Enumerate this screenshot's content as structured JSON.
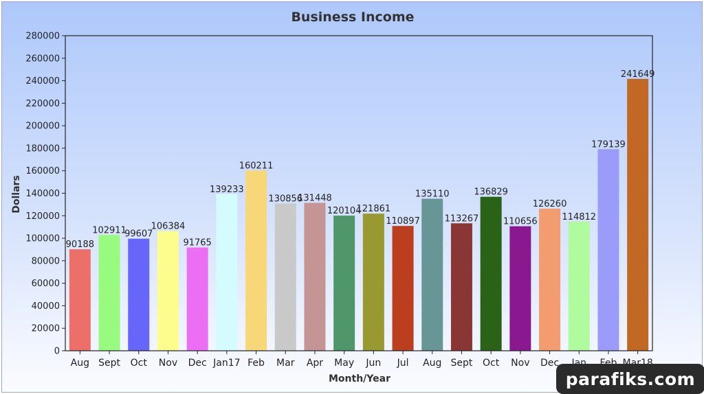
{
  "chart_data": {
    "type": "bar",
    "title": "Business Income",
    "xlabel": "Month/Year",
    "ylabel": "Dollars",
    "ylim": [
      0,
      280000
    ],
    "yticks": [
      0,
      20000,
      40000,
      60000,
      80000,
      100000,
      120000,
      140000,
      160000,
      180000,
      200000,
      220000,
      240000,
      260000,
      280000
    ],
    "grid": false,
    "legend": "none",
    "categories": [
      "Aug",
      "Sept",
      "Oct",
      "Nov",
      "Dec",
      "Jan17",
      "Feb",
      "Mar",
      "Apr",
      "May",
      "Jun",
      "Jul",
      "Aug",
      "Sept",
      "Oct",
      "Nov",
      "Dec",
      "Jan",
      "Feb",
      "Mar18"
    ],
    "values": [
      90188,
      102911,
      99607,
      106384,
      91765,
      139233,
      160211,
      130856,
      131448,
      120104,
      121861,
      110897,
      135110,
      113267,
      136829,
      110656,
      126260,
      114812,
      179139,
      241649
    ],
    "colors": [
      "#ec6f6a",
      "#98fa7e",
      "#6766fb",
      "#fdfd8d",
      "#ec6ff3",
      "#d4fbfd",
      "#f8d779",
      "#c9c9c9",
      "#c49594",
      "#4f976a",
      "#989931",
      "#bb3f1f",
      "#689596",
      "#893634",
      "#2a6317",
      "#8a1990",
      "#f29c6f",
      "#b0fb9e",
      "#9b9bfa",
      "#c16825"
    ]
  },
  "watermark": "parafiks.com"
}
